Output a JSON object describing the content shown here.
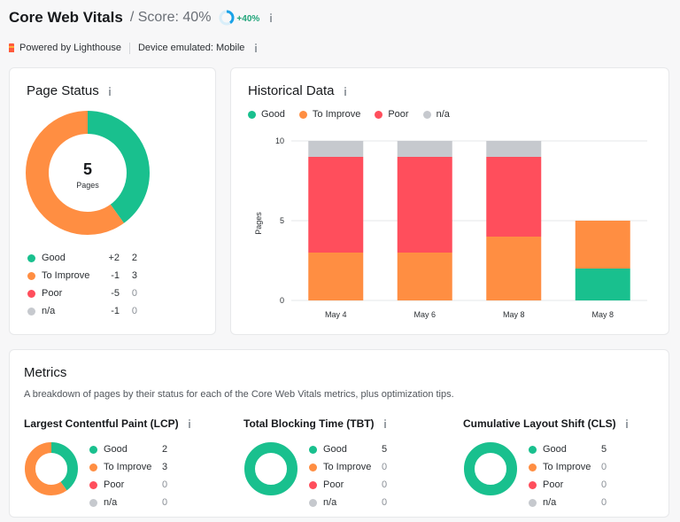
{
  "header": {
    "title": "Core Web Vitals",
    "score_text": "/ Score: 40%",
    "score_change": "+40%",
    "score_ring_fraction": 0.4
  },
  "subheader": {
    "powered_by": "Powered by Lighthouse",
    "device": "Device emulated: Mobile"
  },
  "colors": {
    "good": "#19c08e",
    "to_improve": "#ff8e42",
    "poor": "#ff4e5c",
    "na": "#c6c9ce",
    "accent": "#1aa2e8"
  },
  "page_status": {
    "title": "Page Status",
    "total": "5",
    "total_label": "Pages",
    "items": [
      {
        "label": "Good",
        "delta": "+2",
        "value": "2",
        "color": "#19c08e"
      },
      {
        "label": "To Improve",
        "delta": "-1",
        "value": "3",
        "color": "#ff8e42"
      },
      {
        "label": "Poor",
        "delta": "-5",
        "value": "0",
        "color": "#ff4e5c"
      },
      {
        "label": "n/a",
        "delta": "-1",
        "value": "0",
        "color": "#c6c9ce"
      }
    ]
  },
  "historical": {
    "title": "Historical Data",
    "legend": [
      {
        "label": "Good",
        "color": "#19c08e"
      },
      {
        "label": "To Improve",
        "color": "#ff8e42"
      },
      {
        "label": "Poor",
        "color": "#ff4e5c"
      },
      {
        "label": "n/a",
        "color": "#c6c9ce"
      }
    ]
  },
  "chart_data": {
    "type": "bar",
    "stacked": true,
    "categories": [
      "May 4",
      "May 6",
      "May 8",
      "May 8"
    ],
    "series": [
      {
        "name": "Good",
        "color": "#19c08e",
        "values": [
          0,
          0,
          0,
          2
        ]
      },
      {
        "name": "To Improve",
        "color": "#ff8e42",
        "values": [
          3,
          3,
          4,
          3
        ]
      },
      {
        "name": "Poor",
        "color": "#ff4e5c",
        "values": [
          6,
          6,
          5,
          0
        ]
      },
      {
        "name": "n/a",
        "color": "#c6c9ce",
        "values": [
          1,
          1,
          1,
          0
        ]
      }
    ],
    "ylabel": "Pages",
    "ylim": [
      0,
      10
    ],
    "yticks": [
      "0",
      "5",
      "10"
    ],
    "grid": true
  },
  "metrics": {
    "title": "Metrics",
    "description": "A breakdown of pages by their status for each of the Core Web Vitals metrics, plus optimization tips.",
    "cards": [
      {
        "title": "Largest Contentful Paint (LCP)",
        "rows": [
          {
            "label": "Good",
            "value": "2",
            "color": "#19c08e"
          },
          {
            "label": "To Improve",
            "value": "3",
            "color": "#ff8e42"
          },
          {
            "label": "Poor",
            "value": "0",
            "color": "#ff4e5c"
          },
          {
            "label": "n/a",
            "value": "0",
            "color": "#c6c9ce"
          }
        ]
      },
      {
        "title": "Total Blocking Time (TBT)",
        "rows": [
          {
            "label": "Good",
            "value": "5",
            "color": "#19c08e"
          },
          {
            "label": "To Improve",
            "value": "0",
            "color": "#ff8e42"
          },
          {
            "label": "Poor",
            "value": "0",
            "color": "#ff4e5c"
          },
          {
            "label": "n/a",
            "value": "0",
            "color": "#c6c9ce"
          }
        ]
      },
      {
        "title": "Cumulative Layout Shift (CLS)",
        "rows": [
          {
            "label": "Good",
            "value": "5",
            "color": "#19c08e"
          },
          {
            "label": "To Improve",
            "value": "0",
            "color": "#ff8e42"
          },
          {
            "label": "Poor",
            "value": "0",
            "color": "#ff4e5c"
          },
          {
            "label": "n/a",
            "value": "0",
            "color": "#c6c9ce"
          }
        ]
      }
    ]
  }
}
